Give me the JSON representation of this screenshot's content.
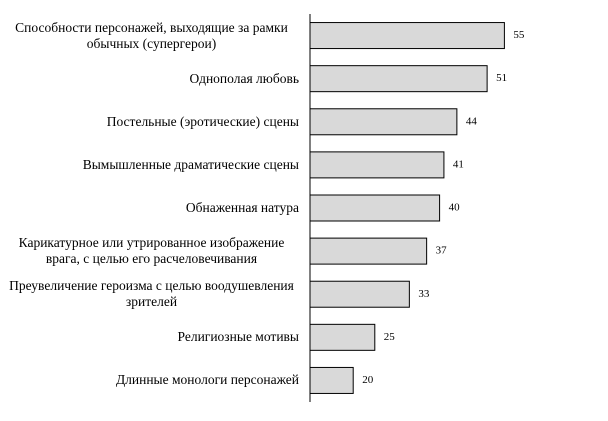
{
  "chart_data": {
    "type": "barh",
    "categories": [
      "Способности персонажей, выходящие за рамки обычных (супергерои)",
      "Однополая любовь",
      "Постельные (эротические) сцены",
      "Вымышленные драматические сцены",
      "Обнаженная натура",
      "Карикатурное или утрированное изображение врага, с целью его расчеловечивания",
      "Преувеличение героизма с целью воодушевления зрителей",
      "Религиозные мотивы",
      "Длинные монологи персонажей"
    ],
    "values": [
      55,
      51,
      44,
      41,
      40,
      37,
      33,
      25,
      20
    ],
    "color": "#d9d9d9",
    "xlim": [
      10,
      60
    ]
  }
}
